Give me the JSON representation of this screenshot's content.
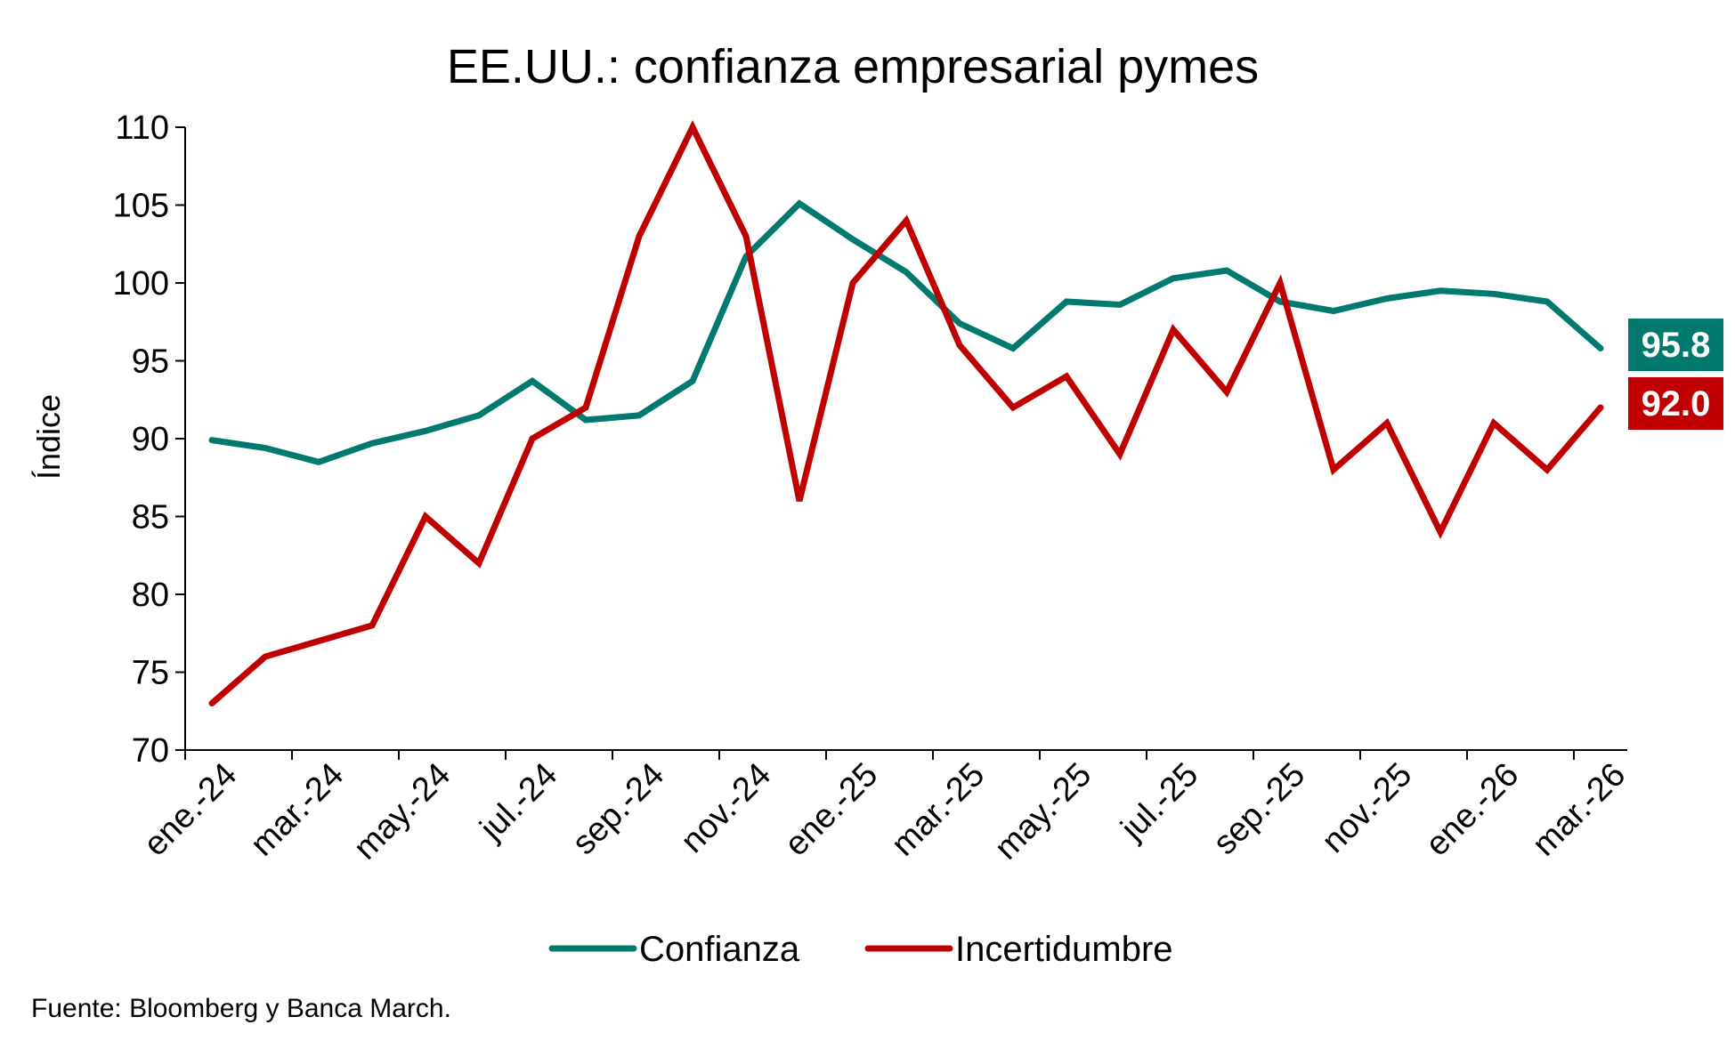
{
  "chart_data": {
    "type": "line",
    "title": "EE.UU.: confianza empresarial pymes",
    "xlabel": "",
    "ylabel": "Índice",
    "ylim": [
      70,
      110
    ],
    "yticks": [
      70,
      75,
      80,
      85,
      90,
      95,
      100,
      105,
      110
    ],
    "categories": [
      "ene.-24",
      "feb.-24",
      "mar.-24",
      "abr.-24",
      "may.-24",
      "jun.-24",
      "jul.-24",
      "ago.-24",
      "sep.-24",
      "oct.-24",
      "nov.-24",
      "dic.-24",
      "ene.-25",
      "feb.-25",
      "mar.-25",
      "abr.-25",
      "may.-25",
      "jun.-25",
      "jul.-25",
      "ago.-25",
      "sep.-25",
      "oct.-25",
      "nov.-25",
      "dic.-25",
      "ene.-26",
      "feb.-26",
      "mar.-26"
    ],
    "tick_labels": [
      "ene.-24",
      "mar.-24",
      "may.-24",
      "jul.-24",
      "sep.-24",
      "nov.-24",
      "ene.-25",
      "mar.-25",
      "may.-25",
      "jul.-25",
      "sep.-25",
      "nov.-25",
      "ene.-26",
      "mar.-26"
    ],
    "grid": false,
    "legend_position": "bottom",
    "series": [
      {
        "name": "Confianza",
        "color": "#007A6E",
        "values": [
          89.9,
          89.4,
          88.5,
          89.7,
          90.5,
          91.5,
          93.7,
          91.2,
          91.5,
          93.7,
          101.7,
          105.1,
          102.8,
          100.7,
          97.4,
          95.8,
          98.8,
          98.6,
          100.3,
          100.8,
          98.8,
          98.2,
          99.0,
          99.5,
          99.3,
          98.8,
          95.8
        ],
        "end_label": "95.8"
      },
      {
        "name": "Incertidumbre",
        "color": "#C00000",
        "values": [
          73,
          76,
          77,
          78,
          85,
          82,
          90,
          92,
          103,
          110,
          103,
          86,
          100,
          104,
          96,
          92,
          94,
          89,
          97,
          93,
          100,
          88,
          91,
          84,
          91,
          88,
          92
        ],
        "end_label": "92.0"
      }
    ]
  },
  "source": "Fuente: Bloomberg y Banca March."
}
